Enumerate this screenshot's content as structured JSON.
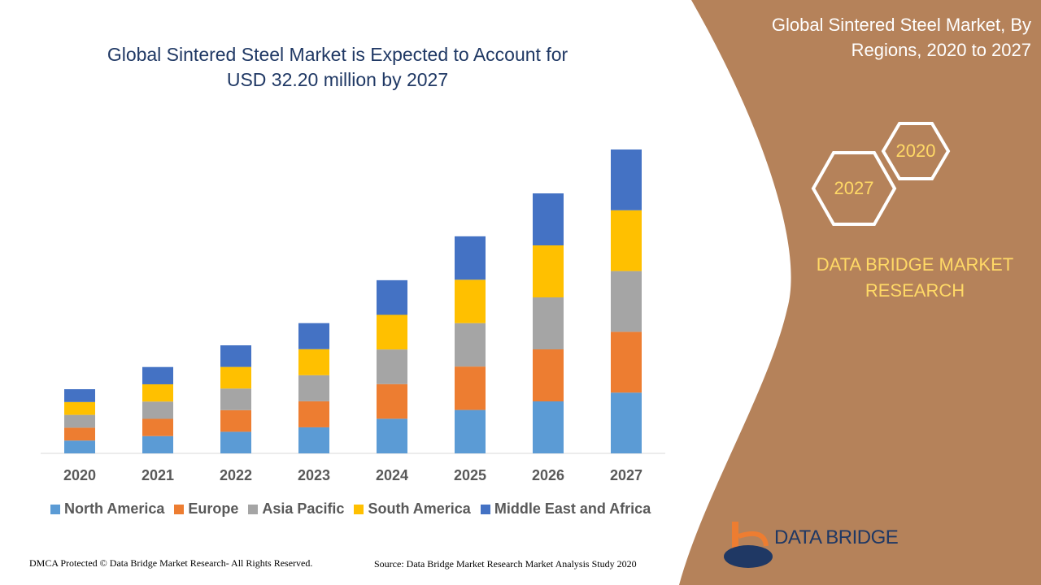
{
  "chart_data": {
    "type": "stacked-bar",
    "title": "Global Sintered Steel Market is Expected to Account for USD 32.20 million by 2027",
    "categories": [
      "2020",
      "2021",
      "2022",
      "2023",
      "2024",
      "2025",
      "2026",
      "2027"
    ],
    "series": [
      {
        "name": "North America",
        "color": "#5b9bd5",
        "values": [
          1.36,
          1.83,
          2.29,
          2.76,
          3.67,
          4.6,
          5.51,
          6.44
        ]
      },
      {
        "name": "Europe",
        "color": "#ed7d31",
        "values": [
          1.36,
          1.83,
          2.29,
          2.76,
          3.67,
          4.6,
          5.51,
          6.44
        ]
      },
      {
        "name": "Asia Pacific",
        "color": "#a5a5a5",
        "values": [
          1.36,
          1.83,
          2.29,
          2.76,
          3.67,
          4.6,
          5.51,
          6.44
        ]
      },
      {
        "name": "South America",
        "color": "#ffc000",
        "values": [
          1.36,
          1.83,
          2.29,
          2.76,
          3.67,
          4.6,
          5.51,
          6.44
        ]
      },
      {
        "name": "Middle East and Africa",
        "color": "#4472c4",
        "values": [
          1.36,
          1.83,
          2.29,
          2.76,
          3.67,
          4.6,
          5.51,
          6.44
        ]
      }
    ]
  },
  "side_panel": {
    "title": "Global Sintered Steel Market, By Regions, 2020 to 2027",
    "hex_labels": [
      "2020",
      "2027"
    ],
    "brand": "DATA BRIDGE MARKET RESEARCH"
  },
  "logo": {
    "text": "DATA BRIDGE"
  },
  "footer": {
    "copyright": "DMCA Protected © Data Bridge Market Research- All Rights Reserved.",
    "source": "Source: Data Bridge Market Research Market Analysis Study 2020"
  }
}
